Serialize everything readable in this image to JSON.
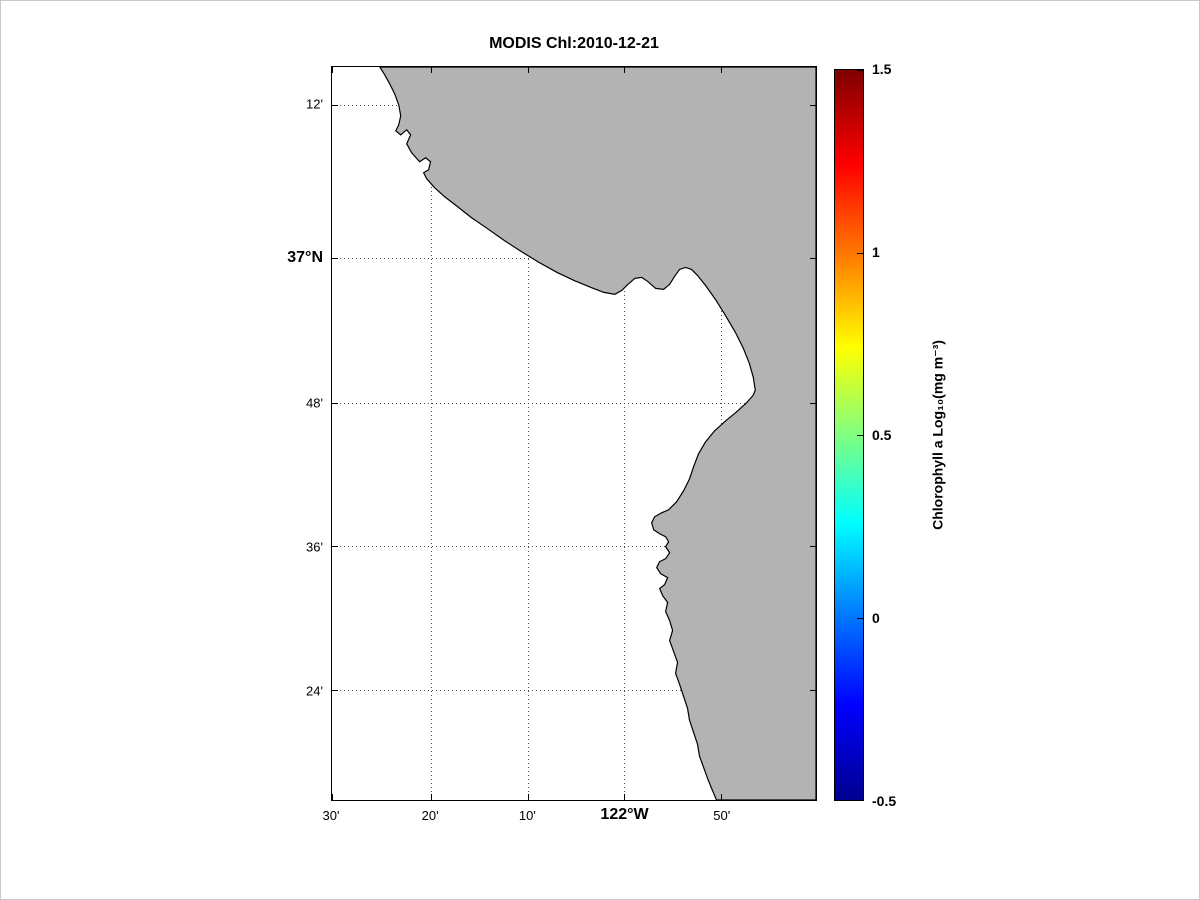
{
  "figure": {
    "title": "MODIS Chl:2010-12-21",
    "background_color": "#ffffff"
  },
  "chart_data": {
    "type": "heatmap",
    "title": "MODIS Chl:2010-12-21",
    "map_note": "Coastal satellite chlorophyll map (Monterey Bay area): land masked gray, ocean area blank white (no valid data shown)",
    "grid": "dotted",
    "x_axis": {
      "label": "",
      "ticks": [
        {
          "label": "30'",
          "pos": 0.0,
          "emphasis": false
        },
        {
          "label": "20'",
          "pos": 0.204,
          "emphasis": false
        },
        {
          "label": "10'",
          "pos": 0.404,
          "emphasis": false
        },
        {
          "label": "122°W",
          "pos": 0.604,
          "emphasis": true
        },
        {
          "label": "50'",
          "pos": 0.804,
          "emphasis": false
        }
      ]
    },
    "y_axis": {
      "label": "",
      "ticks": [
        {
          "label": "12'",
          "pos": 0.052,
          "emphasis": false
        },
        {
          "label": "37°N",
          "pos": 0.261,
          "emphasis": true
        },
        {
          "label": "48'",
          "pos": 0.459,
          "emphasis": false
        },
        {
          "label": "36'",
          "pos": 0.654,
          "emphasis": false
        },
        {
          "label": "24'",
          "pos": 0.85,
          "emphasis": false
        }
      ]
    },
    "colorbar": {
      "label": "Chlorophyll a Log₁₀(mg m⁻³)",
      "range": [
        -0.5,
        1.5
      ],
      "colormap": "jet",
      "ticks": [
        {
          "label": "1.5",
          "pos": 0.0
        },
        {
          "label": "1",
          "pos": 0.25
        },
        {
          "label": "0.5",
          "pos": 0.5
        },
        {
          "label": "0",
          "pos": 0.75
        },
        {
          "label": "-0.5",
          "pos": 1.0
        }
      ],
      "gradient_stops": [
        {
          "color": "#7f0000",
          "pos": 0
        },
        {
          "color": "#ff0000",
          "pos": 13
        },
        {
          "color": "#ff8000",
          "pos": 26
        },
        {
          "color": "#ffff00",
          "pos": 38
        },
        {
          "color": "#80ff80",
          "pos": 50
        },
        {
          "color": "#00ffff",
          "pos": 62
        },
        {
          "color": "#0080ff",
          "pos": 74
        },
        {
          "color": "#0000ff",
          "pos": 87
        },
        {
          "color": "#00008f",
          "pos": 100
        }
      ]
    },
    "colors": {
      "land": "#b3b3b3",
      "ocean_nodata": "#ffffff",
      "coastline": "#000000"
    }
  }
}
